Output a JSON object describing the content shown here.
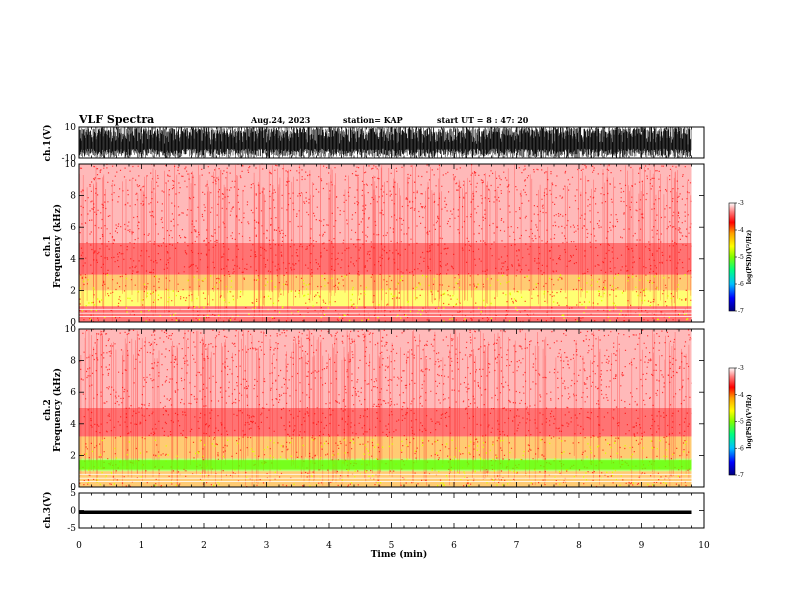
{
  "header": {
    "title": "VLF Spectra",
    "date": "Aug.24, 2023",
    "station": "station= KAP",
    "start": "start UT = 8 : 47: 20"
  },
  "colorbar": {
    "label": "log(PSD)(V²/Hz)",
    "ticks": [
      "-3",
      "-4",
      "-5",
      "-6",
      "-7"
    ],
    "colors": [
      "#000080",
      "#0000ff",
      "#00c0ff",
      "#00ff80",
      "#80ff00",
      "#ffff00",
      "#ffa000",
      "#ff0000",
      "#ff8080",
      "#ffffff"
    ]
  },
  "chart_data": [
    {
      "type": "line",
      "name": "ch1-waveform",
      "ylabel": "ch.1(V)",
      "ylim": [
        -10,
        10
      ],
      "yticks": [
        "10",
        "-10"
      ],
      "xlim": [
        0,
        10
      ],
      "description_values": "saturated waveform spanning roughly -8 to +10 V across 0–9.8 min"
    },
    {
      "type": "heatmap",
      "name": "ch1-spectrogram",
      "ylabel": "ch.1 Frequency (kHz)",
      "ylim": [
        0,
        10
      ],
      "yticks": [
        "0",
        "2",
        "4",
        "6",
        "8",
        "10"
      ],
      "xlim": [
        0,
        10
      ],
      "clim": [
        -7,
        -3
      ],
      "bands": [
        {
          "f_low": 0,
          "f_high": 1.0,
          "level": -3.8
        },
        {
          "f_low": 1.0,
          "f_high": 2.0,
          "level": -4.4
        },
        {
          "f_low": 2.0,
          "f_high": 3.0,
          "level": -4.0
        },
        {
          "f_low": 3.0,
          "f_high": 5.0,
          "level": -3.6
        },
        {
          "f_low": 5.0,
          "f_high": 10.0,
          "level": -3.1
        }
      ]
    },
    {
      "type": "heatmap",
      "name": "ch2-spectrogram",
      "ylabel": "ch.2 Frequency (kHz)",
      "ylim": [
        0,
        10
      ],
      "yticks": [
        "0",
        "2",
        "4",
        "6",
        "8",
        "10"
      ],
      "xlim": [
        0,
        10
      ],
      "clim": [
        -7,
        -3
      ],
      "bands": [
        {
          "f_low": 0,
          "f_high": 1.0,
          "level": -4.3
        },
        {
          "f_low": 1.0,
          "f_high": 1.8,
          "level": -5.0
        },
        {
          "f_low": 1.8,
          "f_high": 3.2,
          "level": -4.3
        },
        {
          "f_low": 3.2,
          "f_high": 5.0,
          "level": -3.6
        },
        {
          "f_low": 5.0,
          "f_high": 10.0,
          "level": -3.1
        }
      ]
    },
    {
      "type": "line",
      "name": "ch3-waveform",
      "ylabel": "ch.3(V)",
      "ylim": [
        -5,
        5
      ],
      "yticks": [
        "5",
        "0",
        "-5"
      ],
      "xlim": [
        0,
        10
      ],
      "level_band": [
        -1,
        0
      ]
    }
  ],
  "xaxis": {
    "label": "Time (min)",
    "ticks": [
      "0",
      "1",
      "2",
      "3",
      "4",
      "5",
      "6",
      "7",
      "8",
      "9",
      "10"
    ],
    "data_end": 9.8
  }
}
